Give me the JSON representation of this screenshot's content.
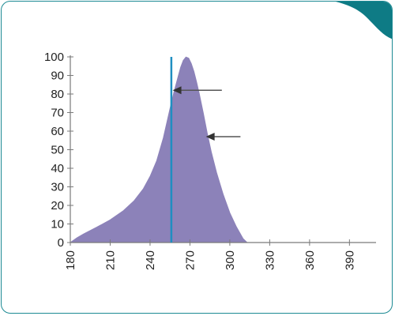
{
  "theme": {
    "frame_color": "#1c8a93",
    "corner_color": "#0e7b85",
    "curve_fill": "#8c82b9",
    "marker_line_color": "#1f8fc1",
    "arrow_color": "#555555",
    "axis_color": "#7a7a7a"
  },
  "chart_data": {
    "type": "area",
    "xlim": [
      180,
      410
    ],
    "ylim": [
      0,
      100
    ],
    "x_ticks": [
      180,
      210,
      240,
      270,
      300,
      330,
      360,
      390
    ],
    "y_ticks": [
      0,
      10,
      20,
      30,
      40,
      50,
      60,
      70,
      80,
      90,
      100
    ],
    "series": [
      {
        "x": [
          180,
          185,
          190,
          200,
          210,
          220,
          228,
          235,
          240,
          245,
          250,
          255,
          258,
          261,
          263,
          265,
          267,
          269,
          271,
          273,
          275,
          277,
          280,
          283,
          286,
          290,
          295,
          300,
          305,
          310,
          313
        ],
        "y": [
          0,
          2.5,
          4.6,
          8.3,
          12.2,
          17.2,
          22.5,
          29.0,
          35.6,
          44.1,
          56.4,
          72.1,
          81.0,
          89.1,
          94.4,
          98.1,
          99.9,
          99.3,
          96.4,
          92.1,
          86.5,
          80.2,
          69.8,
          58.9,
          48.9,
          37.7,
          25.9,
          16.0,
          8.4,
          2.1,
          0
        ]
      }
    ],
    "marker_line": {
      "x": 256,
      "y_top": 100
    },
    "annotations": [
      {
        "type": "arrow",
        "label": "",
        "target_x": 257,
        "target_y": 82,
        "tail_x": 294
      },
      {
        "type": "arrow",
        "label": "",
        "target_x": 282,
        "target_y": 57,
        "tail_x": 308
      }
    ]
  }
}
